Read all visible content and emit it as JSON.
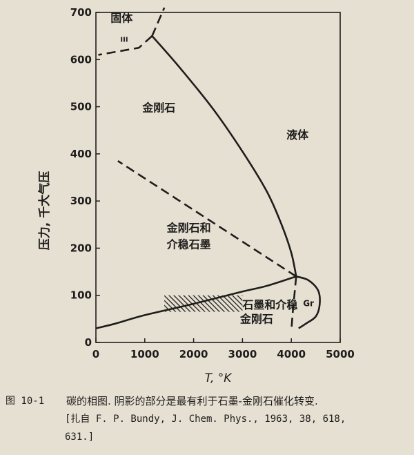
{
  "chart_data": {
    "type": "line",
    "title": "",
    "xlabel": "T, °K",
    "ylabel": "压力, 千大气压",
    "xlim": [
      0,
      5000
    ],
    "ylim": [
      0,
      700
    ],
    "xticks": [
      "0",
      "1000",
      "2000",
      "3000",
      "4000",
      "5000"
    ],
    "yticks": [
      "0",
      "100",
      "200",
      "300",
      "400",
      "500",
      "600",
      "700"
    ],
    "grid": false,
    "series": [
      {
        "style": "solid",
        "points": [
          [
            0,
            30
          ],
          [
            400,
            40
          ],
          [
            1000,
            58
          ],
          [
            2000,
            82
          ],
          [
            3000,
            108
          ],
          [
            3500,
            120
          ],
          [
            4100,
            140
          ]
        ]
      },
      {
        "style": "solid",
        "points": [
          [
            4100,
            140
          ],
          [
            4000,
            190
          ],
          [
            3800,
            250
          ],
          [
            3500,
            320
          ],
          [
            3000,
            405
          ],
          [
            2400,
            495
          ],
          [
            1700,
            585
          ],
          [
            1150,
            650
          ]
        ]
      },
      {
        "style": "solid",
        "points": [
          [
            4100,
            140
          ],
          [
            4350,
            132
          ],
          [
            4550,
            110
          ],
          [
            4580,
            80
          ],
          [
            4500,
            55
          ],
          [
            4300,
            40
          ],
          [
            4150,
            30
          ]
        ]
      },
      {
        "style": "dashed",
        "points": [
          [
            4100,
            140
          ],
          [
            450,
            385
          ]
        ]
      },
      {
        "style": "dashed",
        "points": [
          [
            4100,
            140
          ],
          [
            4030,
            65
          ],
          [
            4000,
            25
          ]
        ]
      },
      {
        "style": "dashed",
        "points": [
          [
            1150,
            650
          ],
          [
            1400,
            710
          ]
        ]
      },
      {
        "style": "dashed",
        "points": [
          [
            1150,
            650
          ],
          [
            880,
            625
          ],
          [
            50,
            610
          ]
        ]
      }
    ],
    "hatched_region": {
      "x": [
        1400,
        3000
      ],
      "y": [
        65,
        100
      ]
    },
    "annotations": [
      {
        "text": "固体",
        "x": 300,
        "y": 680
      },
      {
        "text": "III",
        "x": 500,
        "y": 638
      },
      {
        "text": "金刚石",
        "x": 950,
        "y": 490
      },
      {
        "text": "液体",
        "x": 3900,
        "y": 432
      },
      {
        "text": "金刚石和",
        "x": 1450,
        "y": 235
      },
      {
        "text": "介稳石墨",
        "x": 1450,
        "y": 200
      },
      {
        "text": "石墨和介稳",
        "x": 3000,
        "y": 72
      },
      {
        "text": "金刚石",
        "x": 2950,
        "y": 42
      },
      {
        "text": "Gr",
        "x": 4240,
        "y": 77
      }
    ]
  },
  "caption": {
    "figure_id": "图 10-1",
    "text": "碳的相图. 阴影的部分是最有利于石墨-金刚石催化转变.",
    "reference_line1": "[扎自 F. P. Bundy, J. Chem. Phys., 1963, 38, 618,",
    "reference_line2": "631.]"
  }
}
